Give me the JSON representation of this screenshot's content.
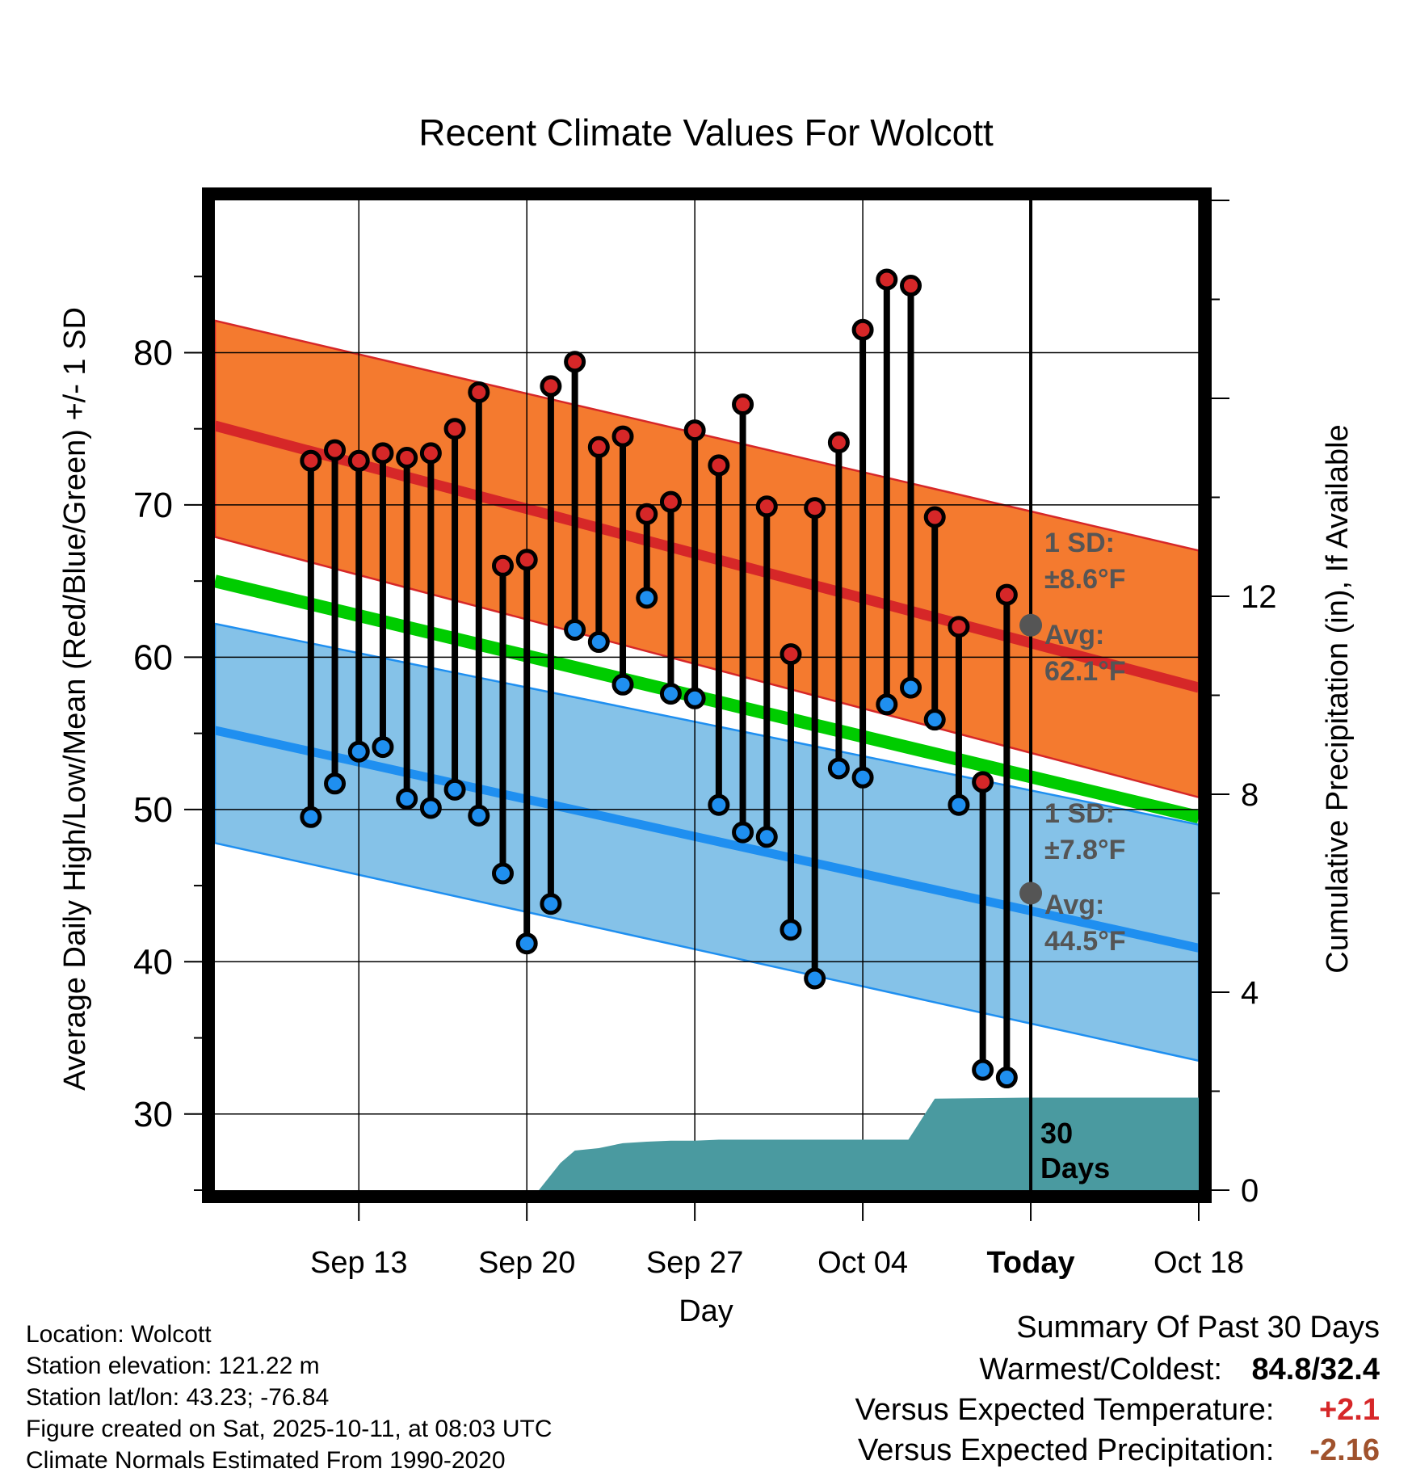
{
  "chart_data": {
    "type": "line",
    "title": "Recent Climate Values For Wolcott",
    "xlabel": "Day",
    "ylabel": "Average Daily High/Low/Mean (Red/Blue/Green) +/- 1 SD",
    "y2label": "Cumulative Precipitation (in), If Available",
    "ylim": [
      25,
      90
    ],
    "y2lim": [
      0,
      20
    ],
    "x_range_days": [
      -34,
      7
    ],
    "x_ticks": [
      {
        "day": -28,
        "label": "Sep 13"
      },
      {
        "day": -21,
        "label": "Sep 20"
      },
      {
        "day": -14,
        "label": "Sep 27"
      },
      {
        "day": -7,
        "label": "Oct 04"
      },
      {
        "day": 0,
        "label": "Today"
      },
      {
        "day": 7,
        "label": "Oct 18"
      }
    ],
    "y_ticks": [
      30,
      40,
      50,
      60,
      70,
      80
    ],
    "y2_ticks": [
      0,
      4,
      8,
      12
    ],
    "normals": {
      "day": [
        -34,
        7
      ],
      "high_avg": [
        75.2,
        58.0
      ],
      "high_upper": [
        82.1,
        67.0
      ],
      "high_lower": [
        67.9,
        50.8
      ],
      "low_avg": [
        55.2,
        40.9
      ],
      "low_upper": [
        62.2,
        49.0
      ],
      "low_lower": [
        47.8,
        33.5
      ],
      "mean_avg": [
        65.0,
        49.5
      ]
    },
    "observed": {
      "day": [
        -30,
        -29,
        -28,
        -27,
        -26,
        -25,
        -24,
        -23,
        -22,
        -21,
        -20,
        -19,
        -18,
        -17,
        -16,
        -15,
        -14,
        -13,
        -12,
        -11,
        -10,
        -9,
        -8,
        -7,
        -6,
        -5,
        -4,
        -3,
        -2,
        -1
      ],
      "high": [
        72.9,
        73.6,
        72.9,
        73.4,
        73.1,
        73.4,
        75.0,
        77.4,
        66.0,
        66.4,
        77.8,
        79.4,
        73.8,
        74.5,
        69.4,
        70.2,
        74.9,
        72.6,
        76.6,
        69.9,
        60.2,
        69.8,
        74.1,
        81.5,
        84.8,
        84.4,
        69.2,
        62.0,
        51.8,
        64.1
      ],
      "low": [
        49.5,
        51.7,
        53.8,
        54.1,
        50.7,
        50.1,
        51.3,
        49.6,
        45.8,
        41.2,
        43.8,
        61.8,
        61.0,
        58.2,
        63.9,
        57.6,
        57.3,
        50.3,
        48.5,
        48.2,
        42.1,
        38.9,
        52.7,
        52.1,
        56.9,
        58.0,
        55.9,
        50.3,
        32.9,
        32.4
      ]
    },
    "precip_cumulative": {
      "day": [
        -34,
        -20.5,
        -19.6,
        -19,
        -18,
        -17,
        -16,
        -15,
        -14,
        -13,
        -12,
        -11,
        -10,
        -9,
        -8,
        -7,
        -6,
        -5.1,
        -4,
        0,
        7
      ],
      "values": [
        0,
        0,
        0.55,
        0.8,
        0.85,
        0.95,
        0.98,
        1.0,
        1.0,
        1.02,
        1.02,
        1.02,
        1.02,
        1.02,
        1.02,
        1.02,
        1.02,
        1.02,
        1.85,
        1.87,
        1.87
      ]
    },
    "annotations": {
      "high_sd": "1 SD:",
      "high_sd_value": "±8.6°F",
      "high_avg_label": "Avg:",
      "high_avg_value": "62.1°F",
      "high_avg_today": 62.1,
      "low_sd": "1 SD:",
      "low_sd_value": "±7.8°F",
      "low_avg_label": "Avg:",
      "low_avg_value": "44.5°F",
      "low_avg_today": 44.5,
      "window_line1": "30",
      "window_line2": "Days"
    }
  },
  "colors": {
    "high_band": "#f47a2f",
    "high_line": "#d62728",
    "low_band": "#85c2e8",
    "low_line": "#1f8ff0",
    "mean_line": "#00cc00",
    "precip_fill": "#4a9aa0",
    "high_dot": "#d62728",
    "low_dot": "#1f8ff0",
    "annotation_text": "#555555",
    "temp_positive": "#d62728",
    "precip_negative": "#a0522d"
  },
  "footer": {
    "location": "Location: Wolcott",
    "elevation": "Station elevation: 121.22 m",
    "latlon": "Station lat/lon: 43.23; -76.84",
    "created": "Figure created on Sat, 2025-10-11, at 08:03 UTC",
    "normals": "Climate Normals Estimated From 1990-2020"
  },
  "summary": {
    "title": "Summary Of Past 30 Days",
    "warmest_coldest_label": "Warmest/Coldest:",
    "warmest_coldest_value": "84.8/32.4",
    "temp_label": "Versus Expected Temperature:",
    "temp_value": "+2.1",
    "precip_label": "Versus Expected Precipitation:",
    "precip_value": "-2.16"
  }
}
